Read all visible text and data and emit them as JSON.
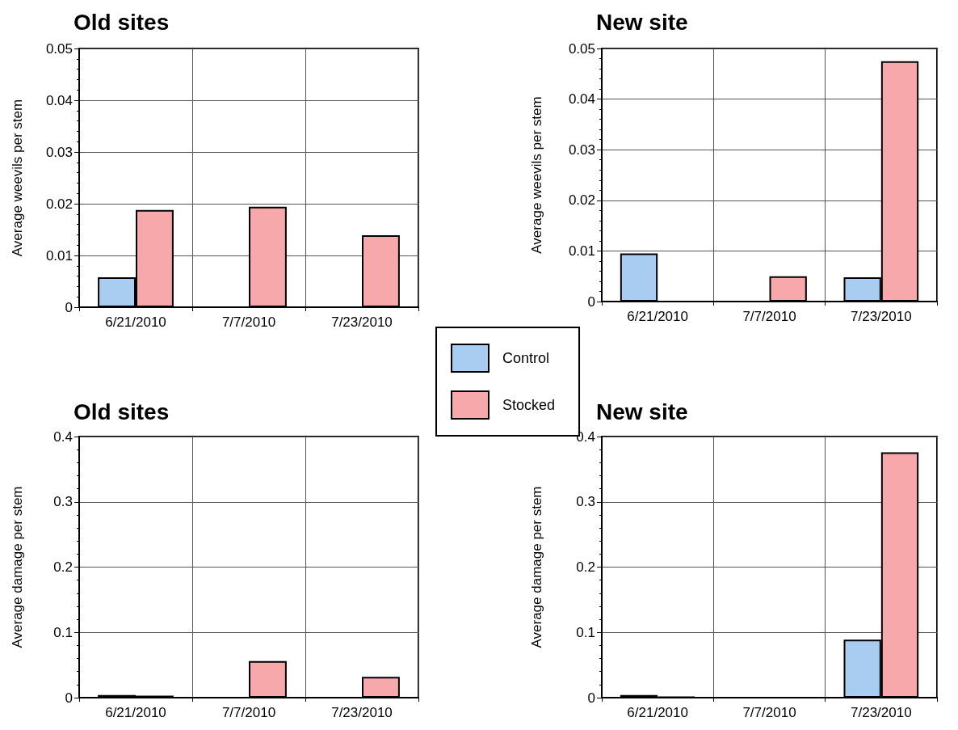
{
  "chart_data": [
    {
      "type": "bar",
      "title": "Old sites",
      "ylabel": "Average weevils per stem",
      "categories": [
        "6/21/2010",
        "7/7/2010",
        "7/23/2010"
      ],
      "series": [
        {
          "name": "Control",
          "color": "#a9cdf0",
          "values": [
            0.0058,
            null,
            null
          ]
        },
        {
          "name": "Stocked",
          "color": "#f7a8ab",
          "values": [
            0.0188,
            0.0194,
            0.0139
          ]
        }
      ],
      "ylim": [
        0,
        0.05
      ],
      "yticks": [
        0,
        0.01,
        0.02,
        0.03,
        0.04,
        0.05
      ],
      "grid": true,
      "legend": "bottom right"
    },
    {
      "type": "bar",
      "title": "New site",
      "ylabel": "Average weevils per stem",
      "categories": [
        "6/21/2010",
        "7/7/2010",
        "7/23/2010"
      ],
      "series": [
        {
          "color": "#a9cdf0",
          "values": [
            0.0095,
            null,
            0.0048
          ]
        },
        {
          "color": "#f7a8ab",
          "values": [
            null,
            0.005,
            0.0475
          ]
        }
      ],
      "ylim": [
        0,
        0.05
      ],
      "yticks": [
        0,
        0.01,
        0.02,
        0.03,
        0.04,
        0.05
      ],
      "grid": true
    },
    {
      "type": "bar",
      "title": "Old sites",
      "ylabel": "Average damage per stem",
      "categories": [
        "6/21/2010",
        "7/7/2010",
        "7/23/2010"
      ],
      "series": [
        {
          "color": "#a9cdf0",
          "values": [
            0.004,
            null,
            null
          ]
        },
        {
          "color": "#f7a8ab",
          "values": [
            0.003,
            0.056,
            0.032
          ]
        }
      ],
      "ylim": [
        0,
        0.4
      ],
      "yticks": [
        0,
        0.1,
        0.2,
        0.3,
        0.4
      ],
      "grid": true
    },
    {
      "type": "bar",
      "title": "New site",
      "ylabel": "Average damage per stem",
      "categories": [
        "6/21/2010",
        "7/7/2010",
        "7/23/2010"
      ],
      "series": [
        {
          "color": "#a9cdf0",
          "values": [
            0.004,
            null,
            0.089
          ]
        },
        {
          "color": "#f7a8ab",
          "values": [
            0.001,
            null,
            0.376
          ]
        }
      ],
      "ylim": [
        0,
        0.4
      ],
      "yticks": [
        0,
        0.1,
        0.2,
        0.3,
        0.4
      ],
      "grid": true
    }
  ]
}
